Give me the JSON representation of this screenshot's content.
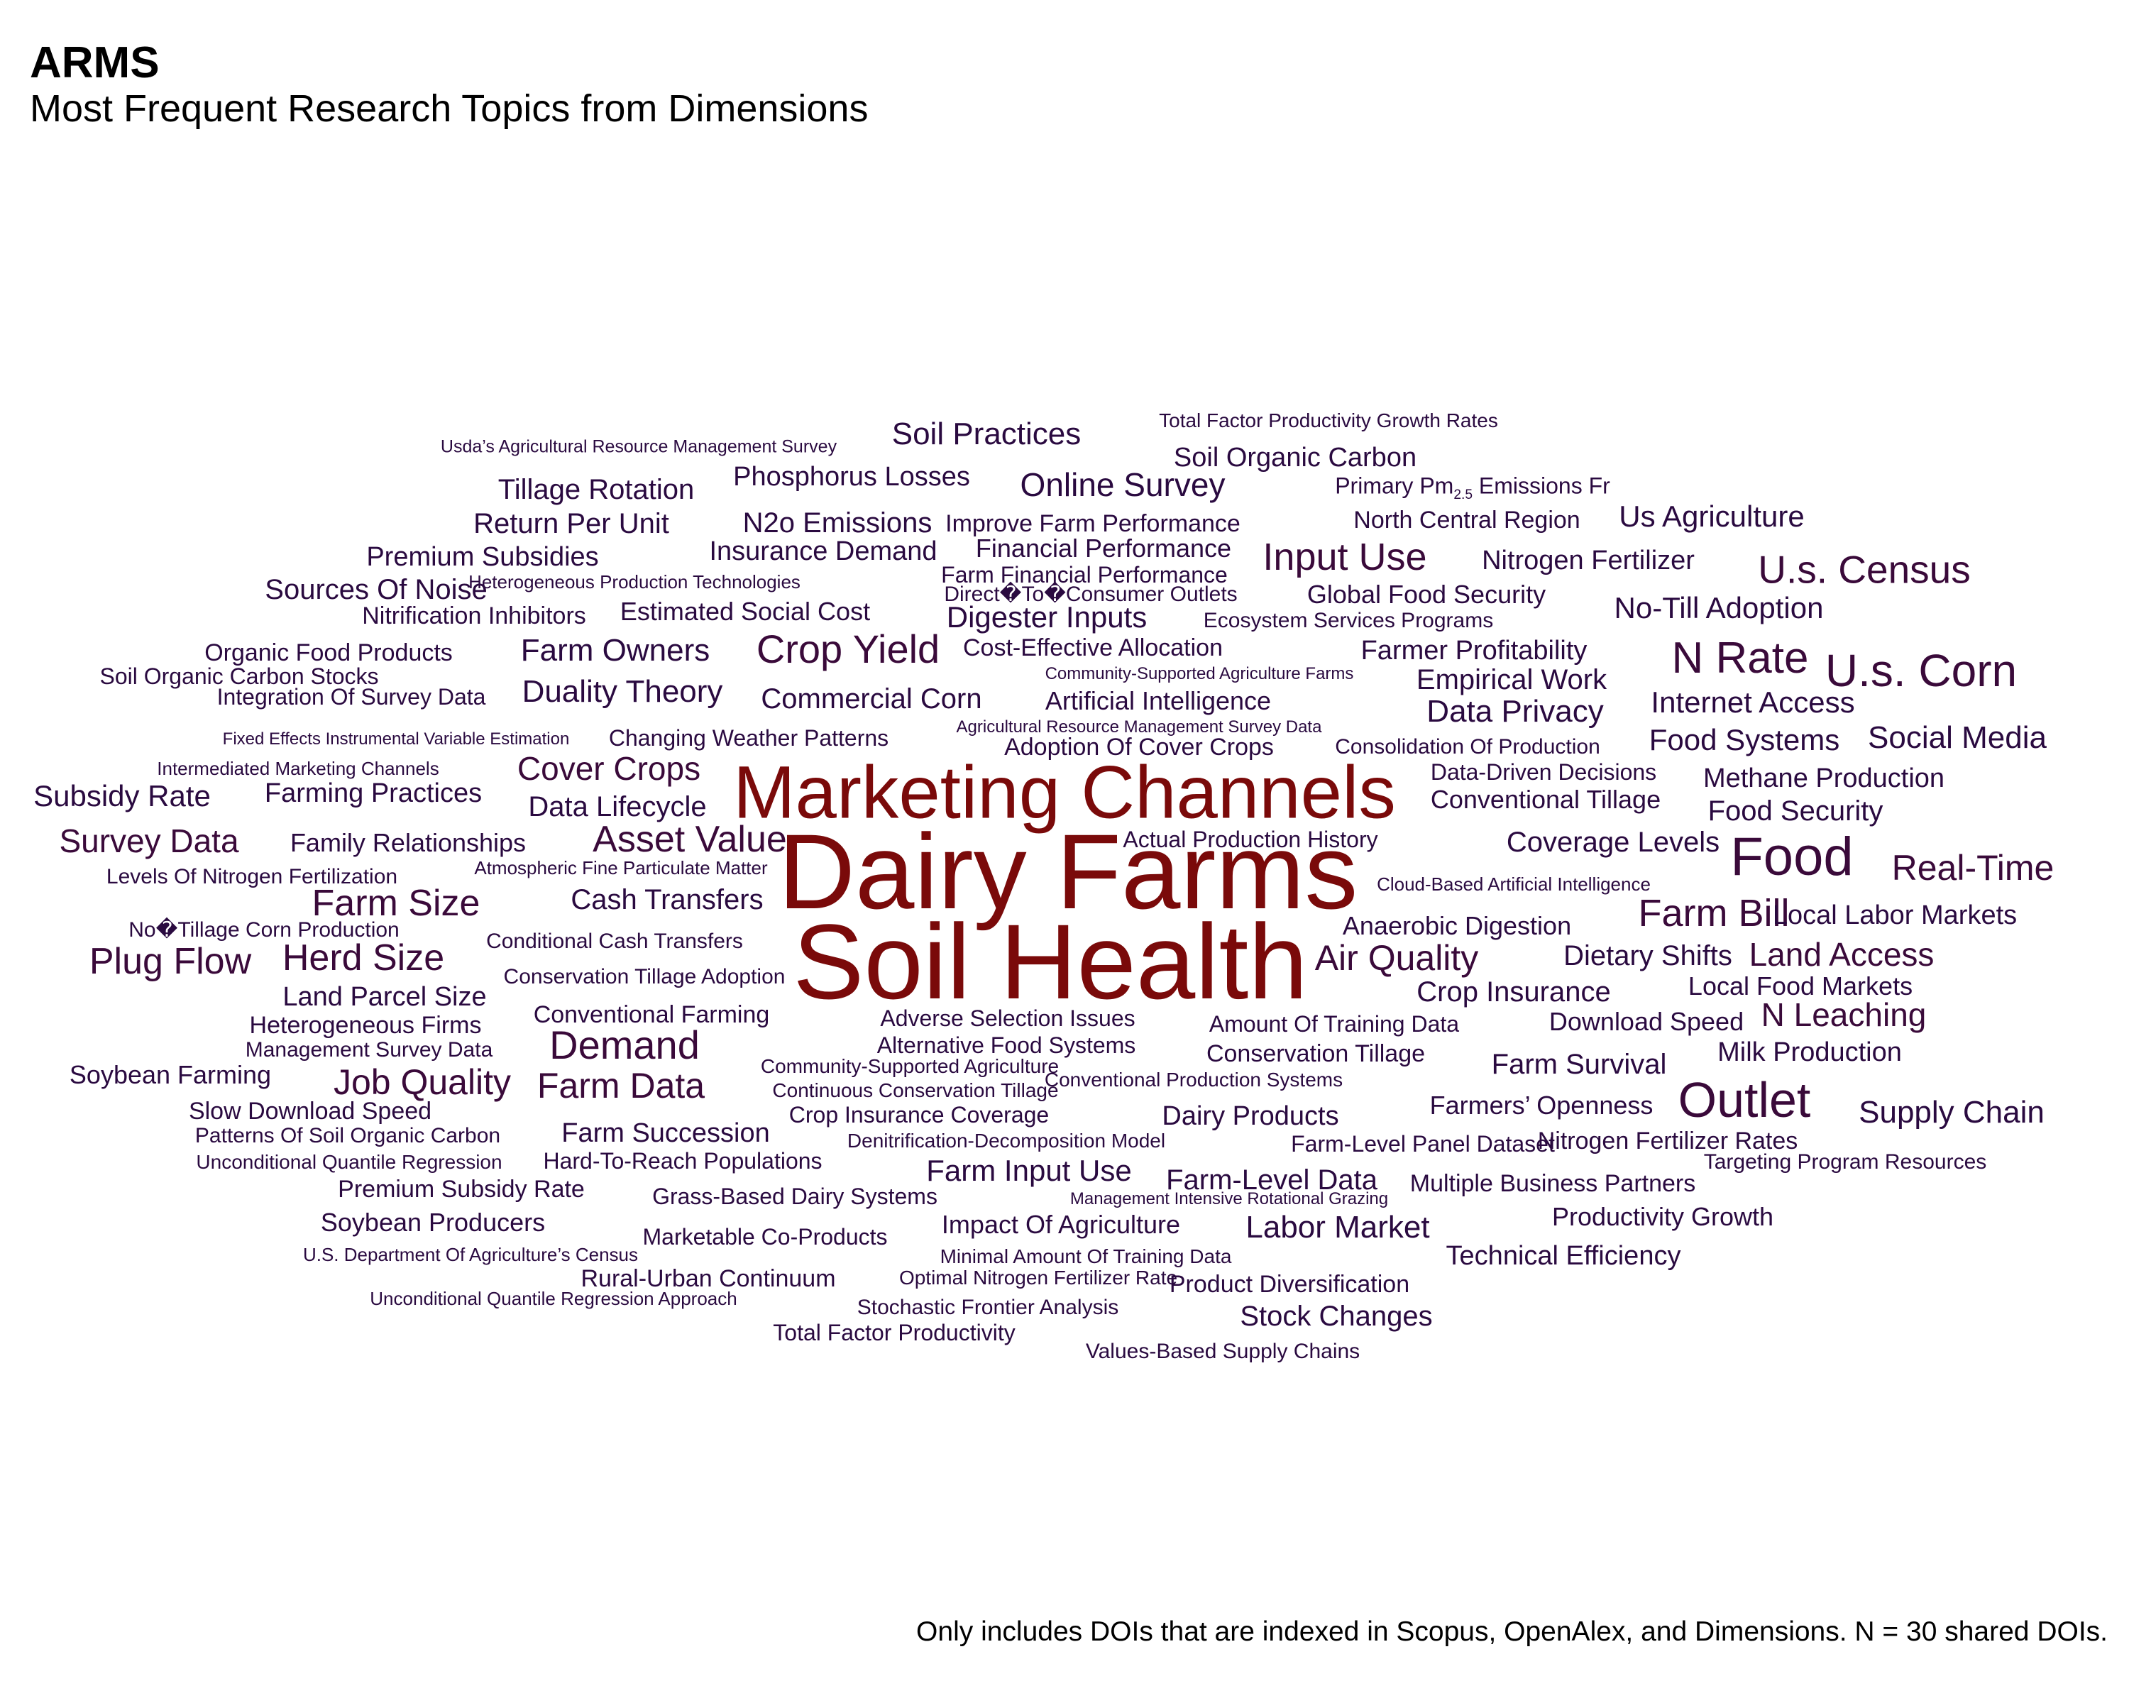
{
  "title": "ARMS",
  "subtitle": "Most Frequent Research Topics from Dimensions",
  "caption": "Only includes DOIs that are indexed in Scopus, OpenAlex, and Dimensions. N = 30 shared DOIs.",
  "colors": {
    "top": "#7a0a0a",
    "mid": "#3a0a3a",
    "low": "#2a0a40"
  },
  "words": [
    {
      "text": "Dairy Farms",
      "freq": 10
    },
    {
      "text": "Soil Health",
      "freq": 10
    },
    {
      "text": "Marketing Channels",
      "freq": 9
    },
    {
      "text": "Food",
      "freq": 4
    },
    {
      "text": "Outlet",
      "freq": 4
    },
    {
      "text": "N Rate",
      "freq": 4
    },
    {
      "text": "U.s. Corn",
      "freq": 4
    },
    {
      "text": "U.s. Census",
      "freq": 3
    },
    {
      "text": "Real-Time",
      "freq": 3
    },
    {
      "text": "Crop Yield",
      "freq": 3
    },
    {
      "text": "Input Use",
      "freq": 3
    },
    {
      "text": "Farm Bill",
      "freq": 3
    },
    {
      "text": "Demand",
      "freq": 3
    },
    {
      "text": "Plug Flow",
      "freq": 3
    },
    {
      "text": "Herd Size",
      "freq": 3
    },
    {
      "text": "Farm Size",
      "freq": 3
    },
    {
      "text": "Asset Value",
      "freq": 3
    },
    {
      "text": "Survey Data",
      "freq": 3
    },
    {
      "text": "Job Quality",
      "freq": 3
    },
    {
      "text": "Farm Data",
      "freq": 3
    },
    {
      "text": "Air Quality",
      "freq": 3
    },
    {
      "text": "Cover Crops",
      "freq": 3
    },
    {
      "text": "Land Access",
      "freq": 3
    },
    {
      "text": "N Leaching",
      "freq": 3
    },
    {
      "text": "Soil Practices",
      "freq": 2
    },
    {
      "text": "Total Factor Productivity Growth Rates",
      "freq": 1
    },
    {
      "text": "Usda’s Agricultural Resource Management Survey",
      "freq": 1
    },
    {
      "text": "Soil Organic Carbon",
      "freq": 2
    },
    {
      "text": "Tillage Rotation",
      "freq": 2
    },
    {
      "text": "Phosphorus Losses",
      "freq": 2
    },
    {
      "text": "Online Survey",
      "freq": 2
    },
    {
      "text": "Primary Pm2.5 Emissions Fr",
      "freq": 1
    },
    {
      "text": "Return Per Unit",
      "freq": 2
    },
    {
      "text": "N2o Emissions",
      "freq": 2
    },
    {
      "text": "Improve Farm Performance",
      "freq": 2
    },
    {
      "text": "North Central Region",
      "freq": 2
    },
    {
      "text": "Us Agriculture",
      "freq": 2
    },
    {
      "text": "Premium Subsidies",
      "freq": 2
    },
    {
      "text": "Insurance Demand",
      "freq": 2
    },
    {
      "text": "Financial Performance",
      "freq": 2
    },
    {
      "text": "Nitrogen Fertilizer",
      "freq": 2
    },
    {
      "text": "Sources Of Noise",
      "freq": 2
    },
    {
      "text": "Heterogeneous Production Technologies",
      "freq": 1
    },
    {
      "text": "Farm Financial Performance",
      "freq": 2
    },
    {
      "text": "Direct�To�Consumer Outlets",
      "freq": 2
    },
    {
      "text": "Global Food Security",
      "freq": 2
    },
    {
      "text": "No-Till Adoption",
      "freq": 2
    },
    {
      "text": "Nitrification Inhibitors",
      "freq": 2
    },
    {
      "text": "Estimated Social Cost",
      "freq": 2
    },
    {
      "text": "Digester Inputs",
      "freq": 2
    },
    {
      "text": "Ecosystem Services Programs",
      "freq": 2
    },
    {
      "text": "Organic Food Products",
      "freq": 2
    },
    {
      "text": "Farm Owners",
      "freq": 2
    },
    {
      "text": "Cost-Effective Allocation",
      "freq": 2
    },
    {
      "text": "Farmer Profitability",
      "freq": 2
    },
    {
      "text": "Soil Organic Carbon Stocks",
      "freq": 2
    },
    {
      "text": "Community-Supported Agriculture Farms",
      "freq": 1
    },
    {
      "text": "Empirical Work",
      "freq": 2
    },
    {
      "text": "Integration Of Survey Data",
      "freq": 2
    },
    {
      "text": "Duality Theory",
      "freq": 2
    },
    {
      "text": "Commercial Corn",
      "freq": 2
    },
    {
      "text": "Artificial Intelligence",
      "freq": 2
    },
    {
      "text": "Data Privacy",
      "freq": 2
    },
    {
      "text": "Internet Access",
      "freq": 2
    },
    {
      "text": "Agricultural Resource Management Survey Data",
      "freq": 1
    },
    {
      "text": "Fixed Effects Instrumental Variable Estimation",
      "freq": 1
    },
    {
      "text": "Changing Weather Patterns",
      "freq": 2
    },
    {
      "text": "Adoption Of Cover Crops",
      "freq": 2
    },
    {
      "text": "Consolidation Of Production",
      "freq": 2
    },
    {
      "text": "Food Systems",
      "freq": 2
    },
    {
      "text": "Social Media",
      "freq": 2
    },
    {
      "text": "Intermediated Marketing Channels",
      "freq": 1
    },
    {
      "text": "Data-Driven Decisions",
      "freq": 2
    },
    {
      "text": "Methane Production",
      "freq": 2
    },
    {
      "text": "Subsidy Rate",
      "freq": 2
    },
    {
      "text": "Farming Practices",
      "freq": 2
    },
    {
      "text": "Data Lifecycle",
      "freq": 2
    },
    {
      "text": "Conventional Tillage",
      "freq": 2
    },
    {
      "text": "Food Security",
      "freq": 2
    },
    {
      "text": "Family Relationships",
      "freq": 2
    },
    {
      "text": "Actual Production History",
      "freq": 2
    },
    {
      "text": "Coverage Levels",
      "freq": 2
    },
    {
      "text": "Levels Of Nitrogen Fertilization",
      "freq": 2
    },
    {
      "text": "Atmospheric Fine Particulate Matter",
      "freq": 1
    },
    {
      "text": "Cloud-Based Artificial Intelligence",
      "freq": 1
    },
    {
      "text": "Cash Transfers",
      "freq": 2
    },
    {
      "text": "Anaerobic Digestion",
      "freq": 2
    },
    {
      "text": "Local Labor Markets",
      "freq": 2
    },
    {
      "text": "No�Tillage Corn Production",
      "freq": 2
    },
    {
      "text": "Conditional Cash Transfers",
      "freq": 2
    },
    {
      "text": "Dietary Shifts",
      "freq": 2
    },
    {
      "text": "Land Parcel Size",
      "freq": 2
    },
    {
      "text": "Conservation Tillage Adoption",
      "freq": 2
    },
    {
      "text": "Crop Insurance",
      "freq": 2
    },
    {
      "text": "Local Food Markets",
      "freq": 2
    },
    {
      "text": "Heterogeneous Firms",
      "freq": 2
    },
    {
      "text": "Conventional Farming",
      "freq": 2
    },
    {
      "text": "Adverse Selection Issues",
      "freq": 2
    },
    {
      "text": "Amount Of Training Data",
      "freq": 2
    },
    {
      "text": "Download Speed",
      "freq": 2
    },
    {
      "text": "Management Survey Data",
      "freq": 2
    },
    {
      "text": "Alternative Food Systems",
      "freq": 2
    },
    {
      "text": "Conservation Tillage",
      "freq": 2
    },
    {
      "text": "Milk Production",
      "freq": 2
    },
    {
      "text": "Soybean Farming",
      "freq": 2
    },
    {
      "text": "Community-Supported Agriculture",
      "freq": 2
    },
    {
      "text": "Farm Survival",
      "freq": 2
    },
    {
      "text": "Conventional Production Systems",
      "freq": 2
    },
    {
      "text": "Continuous Conservation Tillage",
      "freq": 2
    },
    {
      "text": "Slow Download Speed",
      "freq": 2
    },
    {
      "text": "Farmers’ Openness",
      "freq": 2
    },
    {
      "text": "Crop Insurance Coverage",
      "freq": 2
    },
    {
      "text": "Dairy Products",
      "freq": 2
    },
    {
      "text": "Supply Chain",
      "freq": 2
    },
    {
      "text": "Patterns Of Soil Organic Carbon",
      "freq": 2
    },
    {
      "text": "Farm Succession",
      "freq": 2
    },
    {
      "text": "Denitrification-Decomposition Model",
      "freq": 1
    },
    {
      "text": "Farm-Level Panel Dataset",
      "freq": 2
    },
    {
      "text": "Nitrogen Fertilizer Rates",
      "freq": 2
    },
    {
      "text": "Unconditional Quantile Regression",
      "freq": 2
    },
    {
      "text": "Hard-To-Reach Populations",
      "freq": 2
    },
    {
      "text": "Farm Input Use",
      "freq": 2
    },
    {
      "text": "Targeting Program Resources",
      "freq": 2
    },
    {
      "text": "Farm-Level Data",
      "freq": 2
    },
    {
      "text": "Multiple Business Partners",
      "freq": 2
    },
    {
      "text": "Premium Subsidy Rate",
      "freq": 2
    },
    {
      "text": "Grass-Based Dairy Systems",
      "freq": 2
    },
    {
      "text": "Management Intensive Rotational Grazing",
      "freq": 1
    },
    {
      "text": "Soybean Producers",
      "freq": 2
    },
    {
      "text": "Impact Of Agriculture",
      "freq": 2
    },
    {
      "text": "Labor Market",
      "freq": 2
    },
    {
      "text": "Productivity Growth",
      "freq": 2
    },
    {
      "text": "Marketable Co-Products",
      "freq": 2
    },
    {
      "text": "U.S. Department Of Agriculture’s Census",
      "freq": 1
    },
    {
      "text": "Minimal Amount Of Training Data",
      "freq": 2
    },
    {
      "text": "Technical Efficiency",
      "freq": 2
    },
    {
      "text": "Rural-Urban Continuum",
      "freq": 2
    },
    {
      "text": "Optimal Nitrogen Fertilizer Rate",
      "freq": 2
    },
    {
      "text": "Product Diversification",
      "freq": 2
    },
    {
      "text": "Unconditional Quantile Regression Approach",
      "freq": 1
    },
    {
      "text": "Stochastic Frontier Analysis",
      "freq": 2
    },
    {
      "text": "Stock Changes",
      "freq": 2
    },
    {
      "text": "Total Factor Productivity",
      "freq": 2
    },
    {
      "text": "Values-Based Supply Chains",
      "freq": 2
    }
  ]
}
